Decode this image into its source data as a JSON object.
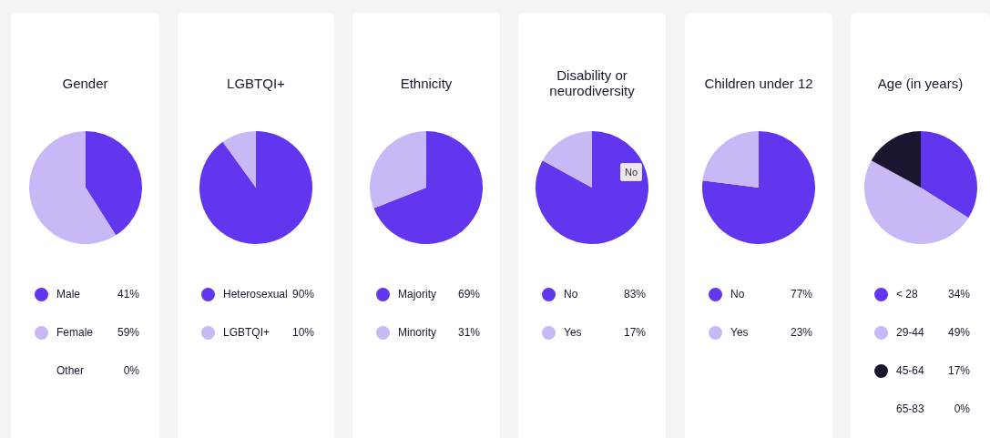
{
  "chart_data": [
    {
      "type": "pie",
      "title": "Gender",
      "categories": [
        "Male",
        "Female",
        "Other"
      ],
      "values": [
        41,
        59,
        0
      ],
      "colors": [
        "#6236ee",
        "#c8b8f6",
        "#ffffff"
      ],
      "value_labels": [
        "41%",
        "59%",
        "0%"
      ],
      "legend": "bottom"
    },
    {
      "type": "pie",
      "title": "LGBTQI+",
      "categories": [
        "Heterosexual",
        "LGBTQI+"
      ],
      "values": [
        90,
        10
      ],
      "colors": [
        "#6236ee",
        "#c8b8f6"
      ],
      "value_labels": [
        "90%",
        "10%"
      ],
      "legend": "bottom"
    },
    {
      "type": "pie",
      "title": "Ethnicity",
      "categories": [
        "Majority",
        "Minority"
      ],
      "values": [
        69,
        31
      ],
      "colors": [
        "#6236ee",
        "#c8b8f6"
      ],
      "value_labels": [
        "69%",
        "31%"
      ],
      "legend": "bottom"
    },
    {
      "type": "pie",
      "title": "Disability or neurodiversity",
      "categories": [
        "No",
        "Yes"
      ],
      "values": [
        83,
        17
      ],
      "colors": [
        "#6236ee",
        "#c8b8f6"
      ],
      "value_labels": [
        "83%",
        "17%"
      ],
      "legend": "bottom",
      "annotations": [
        "No"
      ]
    },
    {
      "type": "pie",
      "title": "Children under 12",
      "categories": [
        "No",
        "Yes"
      ],
      "values": [
        77,
        23
      ],
      "colors": [
        "#6236ee",
        "#c8b8f6"
      ],
      "value_labels": [
        "77%",
        "23%"
      ],
      "legend": "bottom"
    },
    {
      "type": "pie",
      "title": "Age (in years)",
      "categories": [
        "< 28",
        "29-44",
        "45-64",
        "65-83"
      ],
      "values": [
        34,
        49,
        17,
        0
      ],
      "colors": [
        "#6236ee",
        "#c8b8f6",
        "#1c1530",
        "#ffffff"
      ],
      "value_labels": [
        "34%",
        "49%",
        "17%",
        "0%"
      ],
      "legend": "bottom"
    }
  ]
}
